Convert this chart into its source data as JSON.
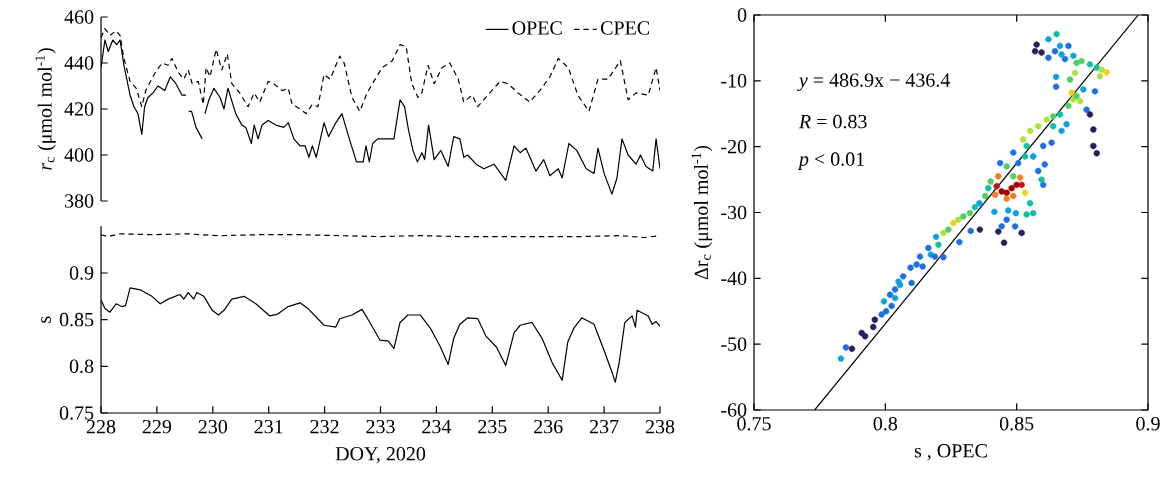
{
  "chart_data": [
    {
      "type": "line",
      "ylabel": "*r*$_{c}$ (μmol mol$^{-1}$)",
      "xlim": [
        228,
        238
      ],
      "ylim": [
        380,
        460
      ],
      "yticks": [
        380,
        400,
        420,
        440,
        460
      ],
      "tick_labels": "y",
      "legend": "top right",
      "series": [
        {
          "name": "OPEC",
          "color": "#000000",
          "line_style": "solid",
          "x": [
            228.0,
            228.07,
            228.13,
            228.21,
            228.28,
            228.34,
            228.41,
            228.52,
            228.59,
            228.66,
            228.73,
            228.78,
            228.84,
            228.93,
            229.02,
            229.14,
            229.24,
            229.34,
            229.45,
            229.52,
            229.54,
            229.57,
            229.62,
            229.7,
            229.81,
            229.84,
            229.86,
            229.93,
            230.02,
            230.13,
            230.2,
            230.27,
            230.41,
            230.52,
            230.59,
            230.69,
            230.74,
            230.81,
            230.88,
            230.99,
            231.13,
            231.27,
            231.35,
            231.45,
            231.56,
            231.65,
            231.72,
            231.78,
            231.85,
            231.99,
            232.07,
            232.2,
            232.31,
            232.43,
            232.57,
            232.69,
            232.74,
            232.8,
            232.86,
            232.95,
            233.08,
            233.24,
            233.35,
            233.43,
            233.5,
            233.58,
            233.66,
            233.74,
            233.79,
            233.86,
            233.96,
            234.08,
            234.21,
            234.31,
            234.42,
            234.49,
            234.56,
            234.71,
            234.85,
            235.03,
            235.24,
            235.39,
            235.5,
            235.6,
            235.78,
            235.92,
            236.03,
            236.18,
            236.25,
            236.37,
            236.51,
            236.68,
            236.82,
            236.89,
            237.0,
            237.14,
            237.23,
            237.32,
            237.43,
            237.57,
            237.65,
            237.75,
            237.87,
            237.93,
            238.0
          ],
          "values": [
            438,
            450,
            445,
            450,
            448,
            450,
            439,
            426,
            421,
            418,
            409,
            421,
            425,
            427,
            430,
            428,
            434,
            431,
            426,
            426,
            null,
            419,
            419,
            412,
            407,
            null,
            418,
            424,
            429,
            425,
            420,
            429,
            418,
            413,
            412,
            405,
            413,
            407,
            413,
            415,
            413,
            412,
            414,
            407,
            404,
            404,
            399,
            404,
            399,
            414,
            408,
            414,
            418,
            408,
            397,
            397,
            404,
            397,
            405,
            407,
            407,
            407,
            424,
            421,
            411,
            402,
            397,
            401,
            398,
            413,
            398,
            402,
            395,
            408,
            407,
            399,
            400,
            396,
            394,
            396,
            389,
            404,
            401,
            403,
            393,
            398,
            391,
            394,
            390,
            405,
            402,
            394,
            392,
            403,
            392,
            383,
            390,
            407,
            400,
            396,
            400,
            395,
            393,
            407,
            394
          ]
        },
        {
          "name": "CPEC",
          "color": "#000000",
          "line_style": "dashed",
          "x": [
            228.0,
            228.07,
            228.16,
            228.27,
            228.34,
            228.41,
            228.52,
            228.63,
            228.73,
            228.8,
            228.95,
            229.09,
            229.2,
            229.27,
            229.38,
            229.48,
            229.56,
            229.63,
            229.74,
            229.83,
            229.88,
            229.95,
            230.06,
            230.16,
            230.26,
            230.34,
            230.48,
            230.63,
            230.74,
            230.84,
            230.99,
            231.09,
            231.24,
            231.35,
            231.42,
            231.56,
            231.67,
            231.78,
            231.88,
            231.99,
            232.1,
            232.27,
            232.35,
            232.49,
            232.63,
            232.76,
            232.88,
            233.03,
            233.21,
            233.35,
            233.46,
            233.56,
            233.67,
            233.74,
            233.85,
            233.96,
            234.1,
            234.24,
            234.39,
            234.49,
            234.64,
            234.74,
            234.92,
            235.14,
            235.28,
            235.46,
            235.67,
            235.85,
            236.03,
            236.18,
            236.36,
            236.53,
            236.73,
            236.89,
            237.07,
            237.29,
            237.43,
            237.57,
            237.79,
            237.93,
            238.0
          ],
          "values": [
            451,
            455,
            452,
            454,
            452,
            442,
            432,
            429,
            421,
            428,
            435,
            440,
            439,
            442,
            436,
            433,
            437,
            431,
            432,
            422,
            438,
            434,
            446,
            437,
            444,
            431,
            427,
            421,
            427,
            423,
            432,
            431,
            428,
            429,
            422,
            420,
            418,
            422,
            421,
            435,
            433,
            443,
            440,
            425,
            419,
            427,
            432,
            438,
            441,
            448,
            447,
            431,
            425,
            427,
            439,
            431,
            438,
            440,
            433,
            423,
            426,
            421,
            426,
            432,
            431,
            427,
            423,
            428,
            434,
            442,
            438,
            426,
            419,
            433,
            433,
            441,
            424,
            427,
            426,
            438,
            428
          ]
        }
      ]
    },
    {
      "type": "line",
      "ylabel": "s",
      "xlabel": "DOY, 2020",
      "xlim": [
        228,
        238
      ],
      "ylim": [
        0.75,
        0.95
      ],
      "xticks": [
        228,
        229,
        230,
        231,
        232,
        233,
        234,
        235,
        236,
        237,
        238
      ],
      "yticks": [
        0.75,
        0.8,
        0.85,
        0.9
      ],
      "series": [
        {
          "color": "#000000",
          "line_style": "solid",
          "x": [
            228.0,
            228.07,
            228.16,
            228.27,
            228.37,
            228.44,
            228.52,
            228.7,
            228.91,
            229.06,
            229.2,
            229.41,
            229.48,
            229.56,
            229.66,
            229.71,
            229.84,
            229.99,
            230.1,
            230.2,
            230.34,
            230.56,
            230.77,
            231.02,
            231.16,
            231.35,
            231.56,
            231.7,
            231.99,
            232.2,
            232.27,
            232.49,
            232.67,
            232.81,
            232.99,
            233.14,
            233.24,
            233.35,
            233.49,
            233.71,
            233.89,
            234.07,
            234.21,
            234.31,
            234.42,
            234.56,
            234.74,
            234.89,
            235.07,
            235.24,
            235.39,
            235.5,
            235.71,
            235.89,
            236.07,
            236.25,
            236.35,
            236.46,
            236.6,
            236.82,
            237.0,
            237.14,
            237.2,
            237.27,
            237.37,
            237.5,
            237.56,
            237.59,
            237.79,
            237.86,
            237.93,
            238.0
          ],
          "values": [
            0.871,
            0.862,
            0.858,
            0.867,
            0.864,
            0.865,
            0.884,
            0.882,
            0.875,
            0.867,
            0.872,
            0.877,
            0.872,
            0.879,
            0.872,
            0.879,
            0.875,
            0.86,
            0.855,
            0.86,
            0.872,
            0.875,
            0.867,
            0.854,
            0.856,
            0.864,
            0.868,
            0.862,
            0.844,
            0.842,
            0.851,
            0.855,
            0.861,
            0.847,
            0.828,
            0.827,
            0.819,
            0.847,
            0.855,
            0.855,
            0.841,
            0.821,
            0.802,
            0.83,
            0.845,
            0.852,
            0.851,
            0.832,
            0.821,
            0.801,
            0.836,
            0.844,
            0.847,
            0.83,
            0.804,
            0.785,
            0.826,
            0.841,
            0.852,
            0.845,
            0.817,
            0.794,
            0.783,
            0.804,
            0.847,
            0.854,
            0.842,
            0.86,
            0.854,
            0.845,
            0.848,
            0.843
          ]
        },
        {
          "color": "#000000",
          "line_style": "dashed",
          "x": [
            228.0,
            228.12,
            228.34,
            228.91,
            229.56,
            229.77,
            230.13,
            230.84,
            231.56,
            232.27,
            232.99,
            233.71,
            234.42,
            235.14,
            235.85,
            236.57,
            237.29,
            237.72,
            238.0
          ],
          "values": [
            0.941,
            0.939,
            0.942,
            0.941,
            0.942,
            0.941,
            0.94,
            0.941,
            0.941,
            0.94,
            0.939,
            0.94,
            0.939,
            0.939,
            0.939,
            0.939,
            0.94,
            0.938,
            0.94
          ]
        }
      ]
    },
    {
      "type": "scatter",
      "ylabel": "Δr$_{c}$ (μmol mol$^{-1}$)",
      "xlabel": "s , OPEC",
      "xlim": [
        0.75,
        0.9
      ],
      "ylim": [
        -60,
        0
      ],
      "xticks": [
        0.75,
        0.8,
        0.85,
        0.9
      ],
      "yticks": [
        -60,
        -50,
        -40,
        -30,
        -20,
        -10,
        0
      ],
      "annotations": [
        "*y* = 486.9x − 436.4",
        "*R* = 0.83",
        "*p* < 0.01"
      ],
      "series": [
        {
          "type": "scatter",
          "marker": "circle",
          "x": [
            0.7831,
            0.785,
            0.7873,
            0.791,
            0.7923,
            0.7954,
            0.796,
            0.7986,
            0.8003,
            0.8024,
            0.7995,
            0.8018,
            0.8037,
            0.8056,
            0.8068,
            0.805,
            0.8037,
            0.81,
            0.8096,
            0.8119,
            0.8142,
            0.8132,
            0.8164,
            0.8173,
            0.8193,
            0.8221,
            0.8189,
            0.8202,
            0.8221,
            0.824,
            0.8259,
            0.8278,
            0.8282,
            0.8297,
            0.8322,
            0.8325,
            0.8341,
            0.836,
            0.8358,
            0.838,
            0.8392,
            0.8401,
            0.8418,
            0.843,
            0.8437,
            0.8415,
            0.843,
            0.8452,
            0.8443,
            0.8468,
            0.8462,
            0.8494,
            0.8519,
            0.8497,
            0.8538,
            0.8563,
            0.8551,
            0.8443,
            0.8462,
            0.8481,
            0.85,
            0.8519,
            0.8462,
            0.8487,
            0.8532,
            0.8424,
            0.8513,
            0.8487,
            0.8462,
            0.8487,
            0.8506,
            0.8532,
            0.8563,
            0.8582,
            0.8601,
            0.8595,
            0.8607,
            0.8538,
            0.8525,
            0.8551,
            0.8582,
            0.8601,
            0.8633,
            0.8614,
            0.8639,
            0.8639,
            0.8671,
            0.8665,
            0.869,
            0.8697,
            0.8716,
            0.8709,
            0.8728,
            0.8741,
            0.8754,
            0.8766,
            0.8779,
            0.8792,
            0.8792,
            0.8805,
            0.8798,
            0.865,
            0.865,
            0.8703,
            0.8722,
            0.8728,
            0.8747,
            0.8779,
            0.8805,
            0.8824,
            0.8843,
            0.8817,
            0.8716,
            0.8684,
            0.8671,
            0.8646,
            0.8621,
            0.8595,
            0.857,
            0.8576,
            0.8621,
            0.8652,
            0.8665,
            0.8697
          ],
          "values": [
            -52.2,
            -50.5,
            -50.7,
            -48.3,
            -48.8,
            -47.4,
            -46.3,
            -45.5,
            -45.0,
            -44.2,
            -43.5,
            -42.5,
            -41.7,
            -41.0,
            -39.7,
            -40.5,
            -43.0,
            -40.7,
            -38.4,
            -37.9,
            -38.2,
            -36.7,
            -35.4,
            -36.4,
            -33.7,
            -36.8,
            -36.7,
            -34.9,
            -33.1,
            -32.6,
            -31.6,
            -31.1,
            -34.5,
            -30.6,
            -30.1,
            -32.8,
            -29.2,
            -32.6,
            -28.6,
            -27.5,
            -26.3,
            -25.3,
            -27.3,
            -24.5,
            -22.5,
            -29.9,
            -32.9,
            -34.6,
            -32.1,
            -29.7,
            -31.1,
            -32.1,
            -33.1,
            -30.1,
            -30.3,
            -30.1,
            -28.6,
            -26.8,
            -27.0,
            -26.3,
            -25.8,
            -25.8,
            -27.9,
            -27.5,
            -27.0,
            -26.0,
            -24.7,
            -24.5,
            -23.0,
            -20.9,
            -22.5,
            -21.5,
            -21.5,
            -23.7,
            -25.8,
            -25.0,
            -22.7,
            -19.9,
            -18.9,
            -17.6,
            -16.9,
            -19.9,
            -19.4,
            -15.9,
            -15.4,
            -16.9,
            -17.6,
            -15.1,
            -16.6,
            -13.8,
            -12.8,
            -11.8,
            -12.3,
            -13.1,
            -11.3,
            -14.4,
            -15.1,
            -17.4,
            -19.9,
            -21.0,
            -11.6,
            -10.9,
            -9.4,
            -9.8,
            -8.8,
            -7.3,
            -7.0,
            -7.5,
            -8.0,
            -8.3,
            -8.7,
            -9.3,
            -6.2,
            -6.7,
            -6.0,
            -5.5,
            -6.5,
            -5.7,
            -5.5,
            -4.5,
            -3.7,
            -2.9,
            -4.7,
            -4.7
          ],
          "colors": [
            "#10a0e0",
            "#1f6fe0",
            "#2d1e5a",
            "#2d1e5a",
            "#2d1e5a",
            "#2d1e5a",
            "#2d1e5a",
            "#1f6fe0",
            "#1f6fe0",
            "#1f6fe0",
            "#10a0e0",
            "#1f6fe0",
            "#1f6fe0",
            "#10a0e0",
            "#1f6fe0",
            "#10a0e0",
            "#10a0e0",
            "#1f6fe0",
            "#1f6fe0",
            "#1f6fe0",
            "#1f6fe0",
            "#1f6fe0",
            "#1f6fe0",
            "#10a0e0",
            "#10a0e0",
            "#1f6fe0",
            "#1f6fe0",
            "#10c0a0",
            "#b0e040",
            "#50d060",
            "#f0d020",
            "#b0e040",
            "#1f6fe0",
            "#50d060",
            "#50d060",
            "#1f6fe0",
            "#10c0a0",
            "#2d1e5a",
            "#10a0e0",
            "#50d060",
            "#10c0a0",
            "#50d060",
            "#f08020",
            "#f08020",
            "#1f6fe0",
            "#10a0e0",
            "#2d1e5a",
            "#2d1e5a",
            "#1f6fe0",
            "#10a0e0",
            "#1f6fe0",
            "#1f6fe0",
            "#2d1e5a",
            "#10a0e0",
            "#10c0a0",
            "#10c0a0",
            "#10c0a0",
            "#a00000",
            "#a00000",
            "#a00000",
            "#a00000",
            "#c01010",
            "#f08020",
            "#f08020",
            "#f0d020",
            "#c01010",
            "#f08020",
            "#50d060",
            "#50d060",
            "#1f6fe0",
            "#1f6fe0",
            "#10c0a0",
            "#10a0e0",
            "#1f6fe0",
            "#1f6fe0",
            "#10c0a0",
            "#1f6fe0",
            "#10c0a0",
            "#b0e040",
            "#b0e040",
            "#b0e040",
            "#1f6fe0",
            "#1f6fe0",
            "#b0e040",
            "#50d060",
            "#10c0a0",
            "#10a0e0",
            "#10c0a0",
            "#10a0e0",
            "#50d060",
            "#b0e040",
            "#f0d020",
            "#50d060",
            "#b0e040",
            "#10a0e0",
            "#1f6fe0",
            "#2d1e5a",
            "#2d1e5a",
            "#2d1e5a",
            "#2d1e5a",
            "#1f6fe0",
            "#1f6fe0",
            "#10a0e0",
            "#50d060",
            "#b0e040",
            "#50d060",
            "#50d060",
            "#10c0a0",
            "#10c0a0",
            "#b0e040",
            "#f0d020",
            "#b0e040",
            "#10a0e0",
            "#1f6fe0",
            "#10a0e0",
            "#1f6fe0",
            "#1f6fe0",
            "#2d1e5a",
            "#2d1e5a",
            "#2d1e5a",
            "#10a0e0",
            "#10c0a0",
            "#10a0e0",
            "#1f6fe0"
          ]
        },
        {
          "type": "line",
          "color": "#000000",
          "line_style": "solid",
          "x": [
            0.7731,
            0.8963
          ],
          "values": [
            -60,
            0
          ]
        }
      ]
    }
  ]
}
